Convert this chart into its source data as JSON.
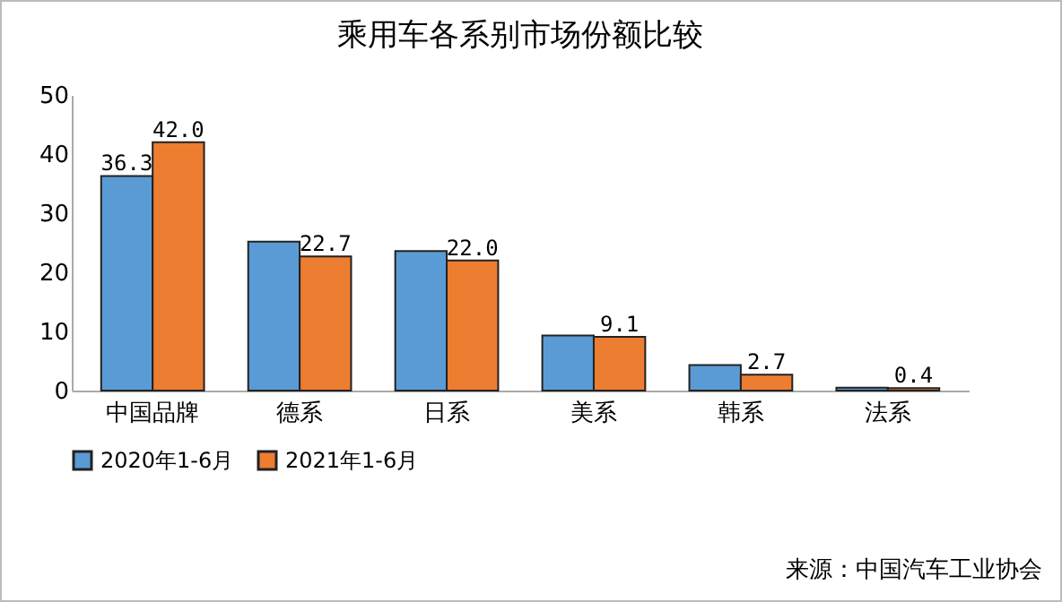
{
  "chart_data": {
    "type": "bar",
    "title": "乘用车各系别市场份额比较",
    "categories": [
      "中国品牌",
      "德系",
      "日系",
      "美系",
      "韩系",
      "法系"
    ],
    "series": [
      {
        "name": "2020年1-6月",
        "color": "#5b9bd5",
        "values": [
          36.3,
          25.2,
          23.6,
          9.3,
          4.3,
          0.5
        ],
        "value_labels": [
          "36.3",
          null,
          null,
          null,
          null,
          null
        ]
      },
      {
        "name": "2021年1-6月",
        "color": "#ed7d31",
        "values": [
          42.0,
          22.7,
          22.0,
          9.1,
          2.7,
          0.4
        ],
        "value_labels": [
          "42.0",
          "22.7",
          "22.0",
          "9.1",
          "2.7",
          "0.4"
        ]
      }
    ],
    "ylim": [
      0,
      50
    ],
    "yticks": [
      0,
      10,
      20,
      30,
      40,
      50
    ],
    "grid": false,
    "legend": "bottom",
    "annotations": [
      "来源：中国汽车工业协会"
    ]
  }
}
